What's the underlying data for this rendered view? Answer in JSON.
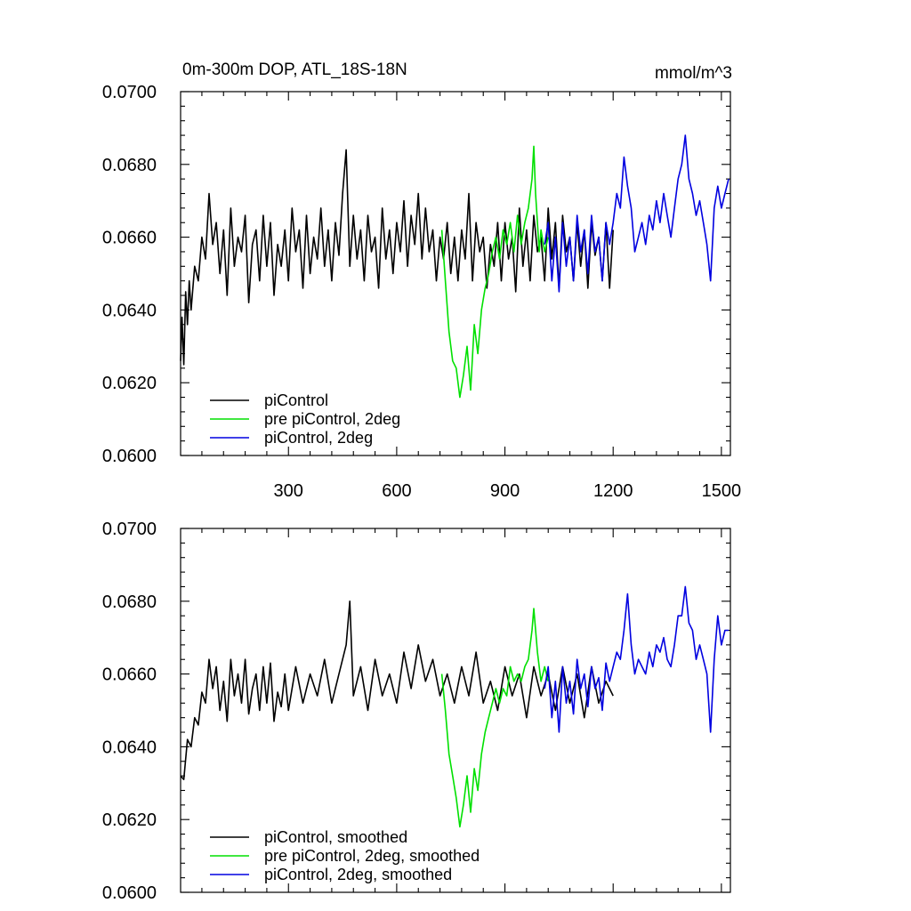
{
  "chart_data": [
    {
      "type": "line",
      "title": "0m-300m DOP, ATL_18S-18N",
      "units": "mmol/m^3",
      "xlim": [
        1,
        1525
      ],
      "ylim": [
        0.06,
        0.07
      ],
      "x_ticks": [
        300,
        600,
        900,
        1200,
        1500
      ],
      "x_tick_labels": [
        "300",
        "600",
        "900",
        "1200",
        "1500"
      ],
      "y_ticks": [
        0.06,
        0.062,
        0.064,
        0.066,
        0.068,
        0.07
      ],
      "y_tick_labels": [
        "0.0600",
        "0.0620",
        "0.0640",
        "0.0660",
        "0.0680",
        "0.0700"
      ],
      "legend_position": "bottom-left",
      "series": [
        {
          "name": "piControl",
          "color": "#000000",
          "x": [
            1,
            5,
            10,
            15,
            20,
            25,
            30,
            40,
            50,
            60,
            70,
            80,
            90,
            100,
            110,
            120,
            130,
            140,
            150,
            160,
            170,
            180,
            190,
            200,
            210,
            220,
            230,
            240,
            250,
            260,
            270,
            280,
            290,
            300,
            310,
            320,
            330,
            340,
            350,
            360,
            370,
            380,
            390,
            400,
            410,
            420,
            430,
            440,
            450,
            460,
            470,
            480,
            490,
            500,
            510,
            520,
            530,
            540,
            550,
            560,
            570,
            580,
            590,
            600,
            610,
            620,
            630,
            640,
            650,
            660,
            670,
            680,
            690,
            700,
            710,
            720,
            730,
            740,
            750,
            760,
            770,
            780,
            790,
            800,
            810,
            820,
            830,
            840,
            850,
            860,
            870,
            880,
            890,
            900,
            910,
            920,
            930,
            940,
            950,
            960,
            970,
            980,
            990,
            1000,
            1010,
            1020,
            1030,
            1040,
            1050,
            1060,
            1070,
            1080,
            1090,
            1100,
            1110,
            1120,
            1130,
            1140,
            1150,
            1160,
            1170,
            1180,
            1190,
            1200
          ],
          "values": [
            0.0626,
            0.0638,
            0.0625,
            0.0645,
            0.0636,
            0.0648,
            0.064,
            0.0652,
            0.0648,
            0.066,
            0.0654,
            0.0672,
            0.0658,
            0.0664,
            0.065,
            0.0662,
            0.0644,
            0.0668,
            0.0652,
            0.066,
            0.0656,
            0.0666,
            0.0642,
            0.0658,
            0.0662,
            0.0648,
            0.0666,
            0.0652,
            0.0664,
            0.0644,
            0.0658,
            0.0652,
            0.0662,
            0.0648,
            0.0668,
            0.0656,
            0.0662,
            0.0646,
            0.0666,
            0.065,
            0.066,
            0.0654,
            0.0668,
            0.0652,
            0.0662,
            0.0648,
            0.0664,
            0.0655,
            0.0672,
            0.0684,
            0.0652,
            0.0666,
            0.0654,
            0.0662,
            0.0648,
            0.0666,
            0.0656,
            0.066,
            0.0646,
            0.0668,
            0.0654,
            0.0662,
            0.065,
            0.0664,
            0.0656,
            0.067,
            0.0652,
            0.0666,
            0.0658,
            0.0672,
            0.0654,
            0.0668,
            0.0656,
            0.0662,
            0.0648,
            0.066,
            0.0654,
            0.0664,
            0.065,
            0.066,
            0.0648,
            0.0662,
            0.0654,
            0.0672,
            0.0648,
            0.0664,
            0.0656,
            0.066,
            0.0646,
            0.0658,
            0.0652,
            0.0664,
            0.0648,
            0.0664,
            0.0654,
            0.066,
            0.0645,
            0.0668,
            0.0652,
            0.0662,
            0.0648,
            0.0666,
            0.0656,
            0.066,
            0.0648,
            0.0668,
            0.0654,
            0.0664,
            0.0646,
            0.0666,
            0.0656,
            0.066,
            0.0648,
            0.0664,
            0.0652,
            0.0662,
            0.0646,
            0.0664,
            0.0655,
            0.066,
            0.0648,
            0.0664,
            0.0646,
            0.0662
          ]
        },
        {
          "name": "pre piControl, 2deg",
          "color": "#00e000",
          "x": [
            725,
            735,
            745,
            755,
            765,
            775,
            785,
            795,
            805,
            815,
            825,
            835,
            845,
            855,
            865,
            875,
            885,
            895,
            905,
            915,
            925,
            935,
            945,
            955,
            965,
            975,
            980,
            985,
            990,
            995,
            1000,
            1010,
            1020
          ],
          "values": [
            0.0662,
            0.0648,
            0.0634,
            0.0626,
            0.0624,
            0.0616,
            0.0622,
            0.063,
            0.0618,
            0.0636,
            0.0628,
            0.064,
            0.0646,
            0.065,
            0.0656,
            0.066,
            0.0654,
            0.0662,
            0.0658,
            0.0664,
            0.0656,
            0.0666,
            0.0658,
            0.0664,
            0.0668,
            0.0676,
            0.0685,
            0.0672,
            0.0664,
            0.0656,
            0.0662,
            0.0656,
            0.066
          ]
        },
        {
          "name": "piControl, 2deg",
          "color": "#0000e0",
          "x": [
            1010,
            1020,
            1030,
            1040,
            1050,
            1060,
            1070,
            1080,
            1090,
            1100,
            1110,
            1120,
            1130,
            1140,
            1150,
            1160,
            1170,
            1180,
            1190,
            1200,
            1210,
            1220,
            1230,
            1240,
            1250,
            1260,
            1270,
            1280,
            1290,
            1300,
            1310,
            1320,
            1330,
            1340,
            1350,
            1360,
            1370,
            1380,
            1390,
            1400,
            1410,
            1420,
            1430,
            1440,
            1450,
            1460,
            1470,
            1480,
            1490,
            1500,
            1510,
            1520
          ],
          "values": [
            0.0658,
            0.0664,
            0.0648,
            0.066,
            0.0645,
            0.0664,
            0.0652,
            0.066,
            0.0648,
            0.0666,
            0.0656,
            0.0662,
            0.065,
            0.0666,
            0.0656,
            0.066,
            0.0648,
            0.0664,
            0.0658,
            0.0664,
            0.0672,
            0.0668,
            0.0682,
            0.0674,
            0.0668,
            0.0656,
            0.066,
            0.0664,
            0.0658,
            0.0666,
            0.0662,
            0.067,
            0.0664,
            0.0672,
            0.0666,
            0.066,
            0.0668,
            0.0676,
            0.068,
            0.0688,
            0.0676,
            0.0672,
            0.0666,
            0.067,
            0.0664,
            0.0658,
            0.0648,
            0.0668,
            0.0674,
            0.0668,
            0.0672,
            0.0676
          ]
        }
      ]
    },
    {
      "type": "line",
      "title": "",
      "xlim": [
        1,
        1525
      ],
      "ylim": [
        0.06,
        0.07
      ],
      "x_ticks": [
        300,
        600,
        900,
        1200,
        1500
      ],
      "y_ticks": [
        0.06,
        0.062,
        0.064,
        0.066,
        0.068,
        0.07
      ],
      "y_tick_labels": [
        "0.0600",
        "0.0620",
        "0.0640",
        "0.0660",
        "0.0680",
        "0.0700"
      ],
      "legend_position": "bottom-left",
      "series": [
        {
          "name": "piControl, smoothed",
          "color": "#000000",
          "x": [
            1,
            10,
            20,
            30,
            40,
            50,
            60,
            70,
            80,
            90,
            100,
            110,
            120,
            130,
            140,
            150,
            160,
            170,
            180,
            190,
            200,
            210,
            220,
            230,
            240,
            250,
            260,
            270,
            280,
            290,
            300,
            320,
            340,
            360,
            380,
            400,
            420,
            440,
            460,
            470,
            480,
            500,
            520,
            540,
            560,
            580,
            600,
            620,
            640,
            660,
            680,
            700,
            720,
            740,
            760,
            780,
            800,
            820,
            840,
            860,
            880,
            900,
            920,
            940,
            960,
            980,
            1000,
            1020,
            1040,
            1060,
            1080,
            1100,
            1120,
            1140,
            1160,
            1180,
            1200
          ],
          "values": [
            0.0632,
            0.0631,
            0.0642,
            0.064,
            0.0648,
            0.0646,
            0.0655,
            0.0652,
            0.0664,
            0.0656,
            0.0662,
            0.065,
            0.0658,
            0.0647,
            0.0664,
            0.0654,
            0.066,
            0.0652,
            0.0664,
            0.0649,
            0.0656,
            0.066,
            0.065,
            0.0662,
            0.0652,
            0.0663,
            0.0647,
            0.0655,
            0.0651,
            0.066,
            0.065,
            0.0662,
            0.0652,
            0.066,
            0.0654,
            0.0664,
            0.0652,
            0.066,
            0.0668,
            0.068,
            0.0654,
            0.0662,
            0.065,
            0.0664,
            0.0654,
            0.066,
            0.0652,
            0.0666,
            0.0656,
            0.0668,
            0.0658,
            0.0664,
            0.0654,
            0.066,
            0.0652,
            0.0662,
            0.0654,
            0.0666,
            0.0652,
            0.0658,
            0.065,
            0.0662,
            0.0654,
            0.066,
            0.0648,
            0.0662,
            0.0654,
            0.066,
            0.065,
            0.0662,
            0.0652,
            0.066,
            0.0648,
            0.0662,
            0.0652,
            0.0658,
            0.0654
          ]
        },
        {
          "name": "pre piControl, 2deg, smoothed",
          "color": "#00e000",
          "x": [
            725,
            735,
            745,
            755,
            765,
            775,
            785,
            795,
            805,
            815,
            825,
            835,
            845,
            855,
            865,
            875,
            885,
            895,
            905,
            915,
            925,
            935,
            945,
            955,
            965,
            975,
            980,
            990,
            1000,
            1010,
            1020
          ],
          "values": [
            0.066,
            0.065,
            0.0638,
            0.0632,
            0.0626,
            0.0618,
            0.0624,
            0.0632,
            0.0622,
            0.0634,
            0.0628,
            0.0638,
            0.0644,
            0.0648,
            0.0652,
            0.0656,
            0.0652,
            0.0656,
            0.0654,
            0.0662,
            0.0658,
            0.066,
            0.0658,
            0.0662,
            0.0664,
            0.0672,
            0.0678,
            0.0666,
            0.0658,
            0.0662,
            0.0658
          ]
        },
        {
          "name": "piControl, 2deg, smoothed",
          "color": "#0000e0",
          "x": [
            1010,
            1020,
            1030,
            1040,
            1050,
            1060,
            1070,
            1080,
            1090,
            1100,
            1110,
            1120,
            1130,
            1140,
            1150,
            1160,
            1170,
            1180,
            1190,
            1200,
            1210,
            1220,
            1230,
            1240,
            1250,
            1260,
            1270,
            1280,
            1290,
            1300,
            1310,
            1320,
            1330,
            1340,
            1350,
            1360,
            1370,
            1380,
            1390,
            1400,
            1410,
            1420,
            1430,
            1440,
            1450,
            1460,
            1470,
            1480,
            1490,
            1500,
            1510,
            1520
          ],
          "values": [
            0.0656,
            0.0662,
            0.0648,
            0.0658,
            0.0644,
            0.0662,
            0.0652,
            0.0658,
            0.0649,
            0.0664,
            0.0656,
            0.066,
            0.0651,
            0.0662,
            0.0656,
            0.0659,
            0.065,
            0.0663,
            0.0658,
            0.0662,
            0.0666,
            0.0664,
            0.0672,
            0.0682,
            0.0668,
            0.066,
            0.0664,
            0.0662,
            0.066,
            0.0666,
            0.0662,
            0.0668,
            0.0666,
            0.067,
            0.0664,
            0.0662,
            0.0668,
            0.0676,
            0.0676,
            0.0684,
            0.0674,
            0.0672,
            0.0664,
            0.0668,
            0.0664,
            0.066,
            0.0644,
            0.0664,
            0.0676,
            0.0668,
            0.0672,
            0.0672
          ]
        }
      ]
    }
  ]
}
